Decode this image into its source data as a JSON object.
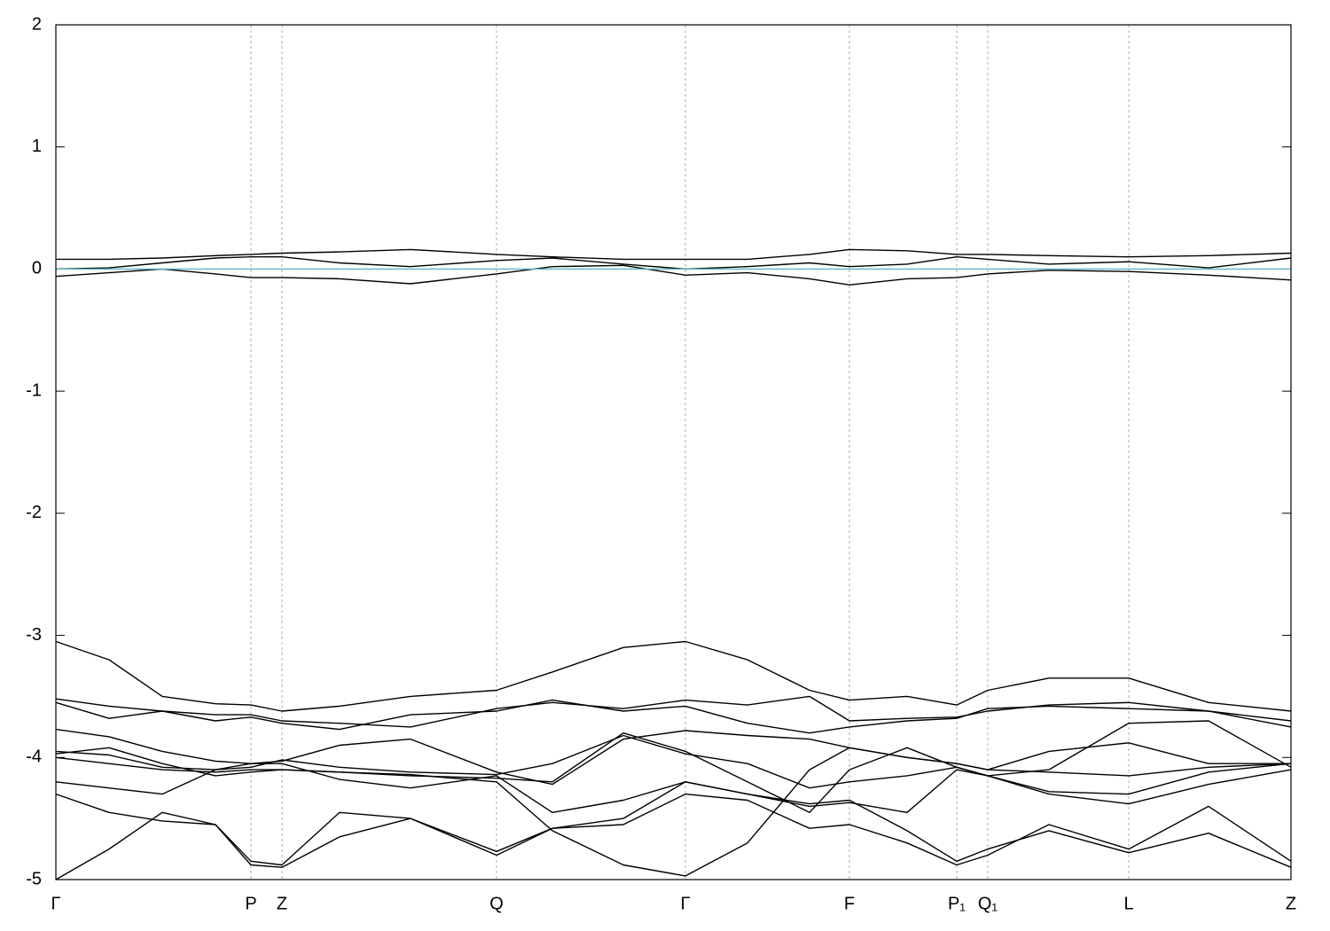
{
  "chart_data": {
    "type": "line",
    "x": [
      0,
      60,
      120,
      180,
      220,
      255,
      320,
      400,
      497,
      560,
      640,
      710,
      780,
      850,
      895,
      960,
      1016,
      1051,
      1120,
      1210,
      1300,
      1393
    ],
    "xlim": [
      0,
      1393
    ],
    "ylim": [
      -5,
      2
    ],
    "yticks": [
      -5,
      -4,
      -3,
      -2,
      -1,
      0,
      1,
      2
    ],
    "xticks": [
      {
        "value": 0,
        "label": "Γ"
      },
      {
        "value": 220,
        "label": "P"
      },
      {
        "value": 255,
        "label": "Z"
      },
      {
        "value": 497,
        "label": "Q"
      },
      {
        "value": 710,
        "label": "Γ"
      },
      {
        "value": 895,
        "label": "F"
      },
      {
        "value": 1016,
        "label": "P₁"
      },
      {
        "value": 1051,
        "label": "Q₁"
      },
      {
        "value": 1210,
        "label": "L"
      },
      {
        "value": 1393,
        "label": "Z"
      }
    ],
    "grid": true,
    "series": [
      {
        "color": "#000000",
        "values": [
          0.08,
          0.08,
          0.09,
          0.11,
          0.12,
          0.13,
          0.14,
          0.16,
          0.12,
          0.1,
          0.08,
          0.08,
          0.08,
          0.12,
          0.16,
          0.15,
          0.12,
          0.12,
          0.11,
          0.1,
          0.11,
          0.13
        ]
      },
      {
        "color": "#000000",
        "values": [
          0,
          0.01,
          0.05,
          0.09,
          0.1,
          0.1,
          0.05,
          0.02,
          0.07,
          0.09,
          0.04,
          0,
          0.02,
          0.05,
          0.02,
          0.04,
          0.1,
          0.08,
          0.04,
          0.06,
          0.01,
          0.09
        ]
      },
      {
        "color": "#000000",
        "values": [
          -0.06,
          -0.03,
          0,
          -0.04,
          -0.07,
          -0.07,
          -0.08,
          -0.12,
          -0.04,
          0.02,
          0.03,
          -0.05,
          -0.03,
          -0.08,
          -0.13,
          -0.08,
          -0.07,
          -0.04,
          -0.01,
          -0.02,
          -0.05,
          -0.09
        ]
      },
      {
        "color": "#000000",
        "values": [
          -3.05,
          -3.2,
          -3.5,
          -3.56,
          -3.57,
          -3.62,
          -3.58,
          -3.5,
          -3.45,
          -3.3,
          -3.1,
          -3.05,
          -3.2,
          -3.45,
          -3.53,
          -3.5,
          -3.57,
          -3.45,
          -3.35,
          -3.35,
          -3.55,
          -3.62
        ]
      },
      {
        "color": "#000000",
        "values": [
          -3.52,
          -3.58,
          -3.62,
          -3.65,
          -3.65,
          -3.7,
          -3.72,
          -3.75,
          -3.6,
          -3.55,
          -3.6,
          -3.53,
          -3.57,
          -3.5,
          -3.7,
          -3.68,
          -3.67,
          -3.62,
          -3.57,
          -3.55,
          -3.62,
          -3.75
        ]
      },
      {
        "color": "#000000",
        "values": [
          -3.55,
          -3.68,
          -3.62,
          -3.7,
          -3.67,
          -3.72,
          -3.77,
          -3.65,
          -3.62,
          -3.53,
          -3.62,
          -3.58,
          -3.72,
          -3.8,
          -3.75,
          -3.7,
          -3.68,
          -3.6,
          -3.58,
          -3.6,
          -3.62,
          -3.7
        ]
      },
      {
        "color": "#000000",
        "values": [
          -3.77,
          -3.83,
          -3.95,
          -4.03,
          -4.05,
          -4.03,
          -3.9,
          -3.85,
          -4.12,
          -4.22,
          -3.85,
          -3.78,
          -3.82,
          -3.85,
          -3.92,
          -4.0,
          -4.05,
          -4.1,
          -3.95,
          -3.88,
          -4.05,
          -4.05
        ]
      },
      {
        "color": "#000000",
        "values": [
          -3.95,
          -3.98,
          -4.08,
          -4.1,
          -4.08,
          -4.02,
          -4.08,
          -4.12,
          -4.14,
          -4.05,
          -3.82,
          -3.97,
          -4.05,
          -4.25,
          -4.2,
          -4.15,
          -4.08,
          -4.15,
          -4.1,
          -3.72,
          -3.7,
          -4.08
        ]
      },
      {
        "color": "#000000",
        "values": [
          -3.97,
          -3.92,
          -4.05,
          -4.15,
          -4.12,
          -4.1,
          -4.12,
          -4.15,
          -4.17,
          -4.2,
          -3.8,
          -3.95,
          -4.2,
          -4.45,
          -4.1,
          -3.92,
          -4.08,
          -4.15,
          -4.28,
          -4.3,
          -4.12,
          -4.05
        ]
      },
      {
        "color": "#000000",
        "values": [
          -4.2,
          -4.25,
          -4.3,
          -4.1,
          -4.05,
          -4.05,
          -4.18,
          -4.25,
          -4.15,
          -4.45,
          -4.35,
          -4.2,
          -4.3,
          -4.4,
          -4.37,
          -4.45,
          -4.1,
          -4.15,
          -4.3,
          -4.38,
          -4.22,
          -4.1
        ]
      },
      {
        "color": "#000000",
        "values": [
          -4.3,
          -4.45,
          -4.52,
          -4.55,
          -4.85,
          -4.88,
          -4.45,
          -4.5,
          -4.77,
          -4.58,
          -4.55,
          -4.3,
          -4.35,
          -4.58,
          -4.55,
          -4.7,
          -4.88,
          -4.8,
          -4.55,
          -4.75,
          -4.4,
          -4.85
        ]
      },
      {
        "color": "#000000",
        "values": [
          -5.0,
          -4.75,
          -4.45,
          -4.55,
          -4.88,
          -4.9,
          -4.65,
          -4.5,
          -4.8,
          -4.58,
          -4.5,
          -4.2,
          -4.3,
          -4.38,
          -4.35,
          -4.6,
          -4.85,
          -4.75,
          -4.6,
          -4.78,
          -4.62,
          -4.9
        ]
      },
      {
        "color": "#000000",
        "values": [
          -4.0,
          -4.05,
          -4.1,
          -4.12,
          -4.1,
          -4.1,
          -4.12,
          -4.14,
          -4.2,
          -4.6,
          -4.88,
          -4.97,
          -4.7,
          -4.1,
          -3.92,
          -4.0,
          -4.05,
          -4.1,
          -4.12,
          -4.15,
          -4.08,
          -4.05
        ]
      },
      {
        "color": "#5fb4c8",
        "values": [
          0,
          0,
          0,
          0,
          0,
          0,
          0,
          0,
          0,
          0,
          0,
          0,
          0,
          0,
          0,
          0,
          0,
          0,
          0,
          0,
          0,
          0
        ]
      }
    ]
  }
}
